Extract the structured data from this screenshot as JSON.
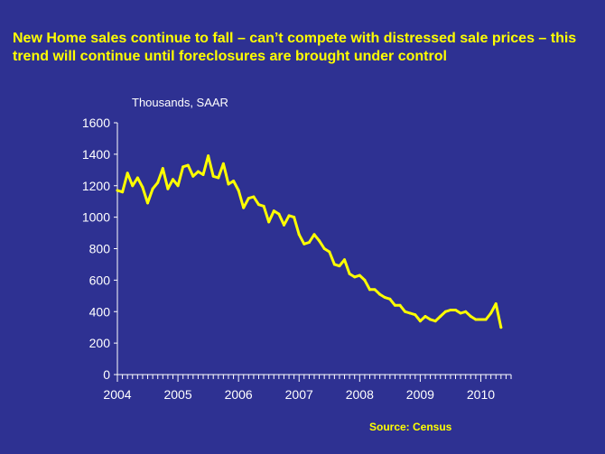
{
  "slide": {
    "title": "New Home sales continue to fall – can’t compete with distressed sale prices – this trend will continue until foreclosures are brought under control",
    "source": "Source: Census"
  },
  "colors": {
    "background": "#2e3192",
    "title": "#ffff00",
    "series": "#ffff00",
    "axis": "#ffffff",
    "text": "#ffffff"
  },
  "chart_data": {
    "type": "line",
    "ylabel": "Thousands, SAAR",
    "ylim": [
      0,
      1600
    ],
    "yticks": [
      0,
      200,
      400,
      600,
      800,
      1000,
      1200,
      1400,
      1600
    ],
    "xlim": [
      2004,
      2010.5
    ],
    "xticks": [
      "2004",
      "2005",
      "2006",
      "2007",
      "2008",
      "2009",
      "2010"
    ],
    "grid": false,
    "legend": "none",
    "series": [
      {
        "x": [
          "2004-01",
          "2004-02",
          "2004-03",
          "2004-04",
          "2004-05",
          "2004-06",
          "2004-07",
          "2004-08",
          "2004-09",
          "2004-10",
          "2004-11",
          "2004-12",
          "2005-01",
          "2005-02",
          "2005-03",
          "2005-04",
          "2005-05",
          "2005-06",
          "2005-07",
          "2005-08",
          "2005-09",
          "2005-10",
          "2005-11",
          "2005-12",
          "2006-01",
          "2006-02",
          "2006-03",
          "2006-04",
          "2006-05",
          "2006-06",
          "2006-07",
          "2006-08",
          "2006-09",
          "2006-10",
          "2006-11",
          "2006-12",
          "2007-01",
          "2007-02",
          "2007-03",
          "2007-04",
          "2007-05",
          "2007-06",
          "2007-07",
          "2007-08",
          "2007-09",
          "2007-10",
          "2007-11",
          "2007-12",
          "2008-01",
          "2008-02",
          "2008-03",
          "2008-04",
          "2008-05",
          "2008-06",
          "2008-07",
          "2008-08",
          "2008-09",
          "2008-10",
          "2008-11",
          "2008-12",
          "2009-01",
          "2009-02",
          "2009-03",
          "2009-04",
          "2009-05",
          "2009-06",
          "2009-07",
          "2009-08",
          "2009-09",
          "2009-10",
          "2009-11",
          "2009-12",
          "2010-01",
          "2010-02",
          "2010-03",
          "2010-04",
          "2010-05"
        ],
        "values": [
          1170,
          1160,
          1280,
          1200,
          1250,
          1190,
          1090,
          1180,
          1220,
          1310,
          1180,
          1240,
          1200,
          1320,
          1330,
          1260,
          1290,
          1270,
          1390,
          1260,
          1250,
          1340,
          1210,
          1230,
          1170,
          1060,
          1120,
          1130,
          1080,
          1070,
          970,
          1040,
          1020,
          950,
          1010,
          1000,
          890,
          830,
          840,
          890,
          850,
          800,
          780,
          700,
          690,
          730,
          640,
          620,
          630,
          600,
          540,
          540,
          510,
          490,
          480,
          440,
          440,
          400,
          390,
          380,
          340,
          370,
          350,
          340,
          370,
          400,
          410,
          410,
          390,
          400,
          370,
          350,
          350,
          350,
          390,
          450,
          300
        ]
      }
    ]
  }
}
